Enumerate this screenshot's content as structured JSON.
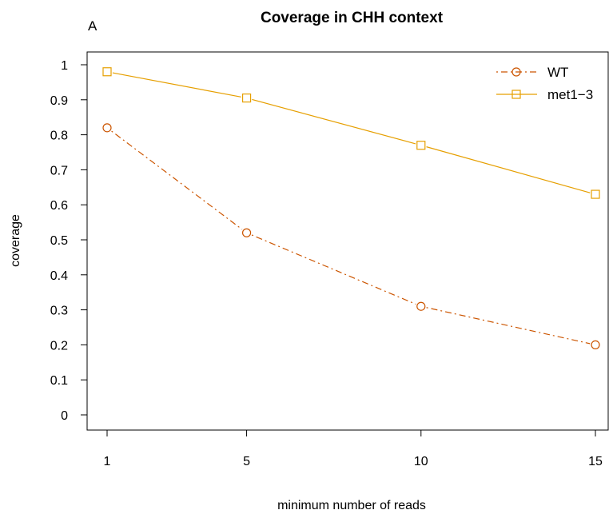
{
  "chart_data": {
    "type": "line",
    "title": "Coverage in CHH context",
    "panel_label": "A",
    "xlabel": "minimum number of reads",
    "ylabel": "coverage",
    "x": [
      1,
      5,
      10,
      15
    ],
    "xticks": [
      "1",
      "5",
      "10",
      "15"
    ],
    "yticks": [
      "0",
      "0.1",
      "0.2",
      "0.3",
      "0.4",
      "0.5",
      "0.6",
      "0.7",
      "0.8",
      "0.9",
      "1"
    ],
    "ylim": [
      0,
      1
    ],
    "grid": false,
    "legend_position": "top-right",
    "series": [
      {
        "name": "WT",
        "values": [
          0.82,
          0.52,
          0.31,
          0.2
        ],
        "color": "#CC5500",
        "line": "dotdash",
        "marker": "circle"
      },
      {
        "name": "met1−3",
        "values": [
          0.98,
          0.905,
          0.77,
          0.63
        ],
        "color": "#E69F00",
        "line": "solid",
        "marker": "square"
      }
    ]
  }
}
